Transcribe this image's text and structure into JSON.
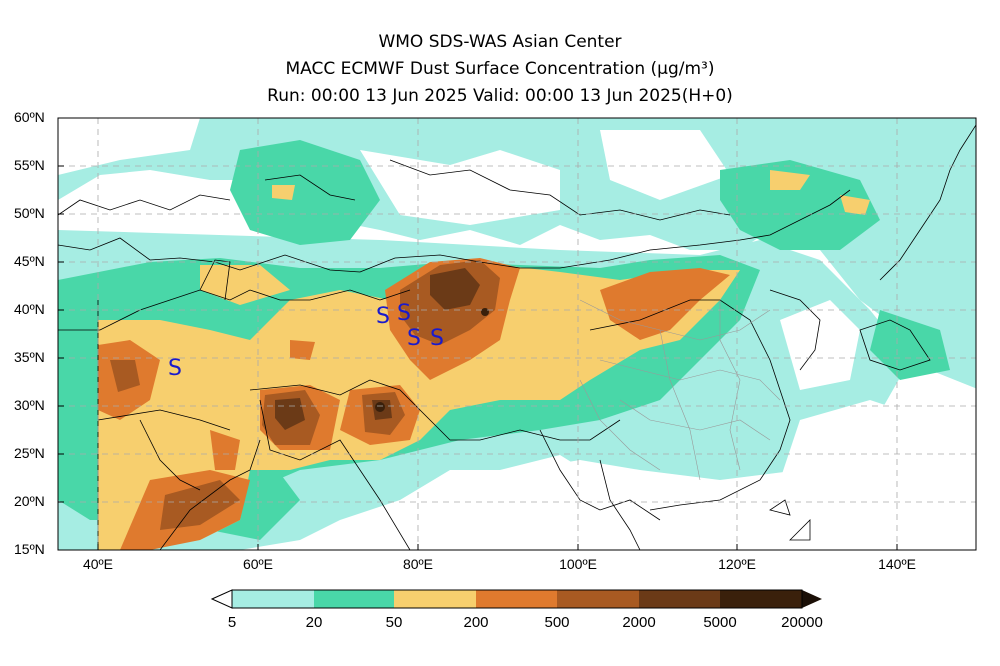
{
  "title": {
    "line1": "WMO SDS-WAS Asian Center",
    "line2": "MACC ECMWF Dust Surface Concentration (μg/m³)",
    "line3": "Run: 00:00 13 Jun 2025    Valid: 00:00 13 Jun 2025(H+0)"
  },
  "map": {
    "lon_range": [
      35,
      150
    ],
    "lat_range": [
      15,
      60
    ],
    "y_ticks": [
      "15ºN",
      "20ºN",
      "25ºN",
      "30ºN",
      "35ºN",
      "40ºN",
      "45ºN",
      "50ºN",
      "55ºN",
      "60ºN"
    ],
    "x_ticks": [
      "40ºE",
      "60ºE",
      "80ºE",
      "100ºE",
      "120ºE",
      "140ºE"
    ],
    "grid": "dashed",
    "symbol": "S",
    "symbol_color": "#1a1acc"
  },
  "colorbar": {
    "levels": [
      "5",
      "20",
      "50",
      "200",
      "500",
      "2000",
      "5000",
      "20000"
    ],
    "colors": [
      "#a6ede3",
      "#49d7a8",
      "#f7cf6e",
      "#df7a2e",
      "#a85a22",
      "#6b3a17",
      "#3a200b"
    ],
    "extends": "both"
  }
}
